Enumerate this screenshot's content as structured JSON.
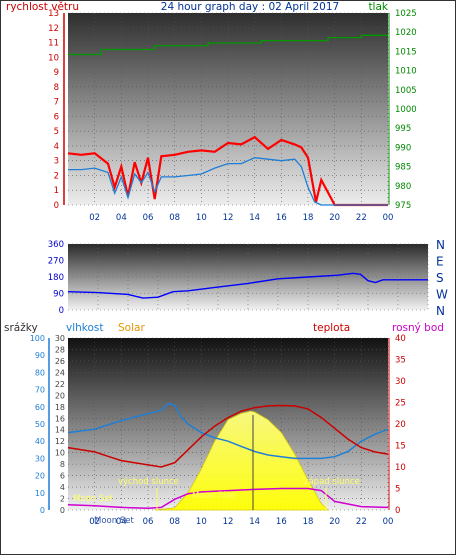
{
  "chart_data": [
    {
      "type": "line",
      "panel": "wind-pressure",
      "title": "24 hour graph day : 02 April 2017",
      "ylabel_left": "rychlost větru",
      "ylabel_right": "tlak",
      "x_tick_labels": [
        "02",
        "04",
        "06",
        "08",
        "10",
        "12",
        "14",
        "16",
        "18",
        "20",
        "22",
        "00"
      ],
      "y_left_ticks": [
        "0",
        "1",
        "2",
        "3",
        "4",
        "5",
        "6",
        "7",
        "8",
        "9",
        "10",
        "11",
        "12",
        "13"
      ],
      "y_right_ticks": [
        "975",
        "980",
        "985",
        "990",
        "995",
        "1000",
        "1005",
        "1010",
        "1015",
        "1020",
        "1025"
      ],
      "ylim_left": [
        0,
        13
      ],
      "ylim_right": [
        975,
        1025
      ],
      "xlim_hours": [
        0,
        24
      ],
      "series": [
        {
          "color": "#ff0000",
          "axis": "left",
          "x": [
            0,
            1,
            2,
            3,
            3.5,
            4,
            4.5,
            5,
            5.5,
            6,
            6.5,
            7,
            8,
            9,
            10,
            11,
            12,
            13,
            14,
            15,
            16,
            17,
            17.5,
            18,
            18.3,
            18.6,
            19,
            20,
            22,
            24
          ],
          "y": [
            3.5,
            3.4,
            3.5,
            2.8,
            1.2,
            2.6,
            0.6,
            2.9,
            1.5,
            3.2,
            0.4,
            3.3,
            3.4,
            3.6,
            3.7,
            3.6,
            4.2,
            4.1,
            4.6,
            3.8,
            4.4,
            4.1,
            3.9,
            3.2,
            1.7,
            0.2,
            1.7,
            0,
            0,
            0
          ]
        },
        {
          "color": "#1f7fd6",
          "axis": "left",
          "x": [
            0,
            1,
            2,
            3,
            3.5,
            4,
            4.5,
            5,
            5.5,
            6,
            6.5,
            7,
            8,
            9,
            10,
            11,
            12,
            13,
            14,
            15,
            16,
            17,
            17.5,
            18,
            18.5,
            19,
            20,
            22,
            24
          ],
          "y": [
            2.4,
            2.4,
            2.5,
            2.2,
            0.8,
            1.9,
            0.5,
            2.1,
            1.5,
            2.2,
            0.9,
            1.9,
            1.9,
            2.0,
            2.1,
            2.5,
            2.8,
            2.8,
            3.2,
            3.1,
            3.0,
            3.1,
            2.6,
            1.2,
            0.2,
            0,
            0,
            0,
            0
          ]
        },
        {
          "color": "#009900",
          "axis": "right",
          "x": [
            0,
            2.5,
            2.5,
            6.5,
            6.5,
            10.5,
            10.5,
            14.5,
            14.5,
            19.5,
            19.5,
            22,
            22,
            24
          ],
          "y": [
            1014.2,
            1014.2,
            1015.5,
            1015.5,
            1016.5,
            1016.5,
            1017.2,
            1017.2,
            1017.8,
            1017.8,
            1018.6,
            1018.6,
            1019.2,
            1019.2
          ]
        }
      ]
    },
    {
      "type": "scatter",
      "panel": "wind-direction",
      "x_tick_labels": [],
      "y_left_ticks": [
        "0",
        "90",
        "180",
        "270",
        "360"
      ],
      "direction_labels": [
        "N",
        "W",
        "S",
        "E",
        "N"
      ],
      "ylim": [
        0,
        360
      ],
      "series": [
        {
          "color": "#0000ff",
          "x": [
            0,
            2,
            4,
            5,
            6,
            7,
            8,
            10,
            12,
            14,
            16,
            18,
            19,
            19.5,
            20,
            20.5,
            21,
            24
          ],
          "y": [
            100,
            95,
            85,
            65,
            70,
            100,
            105,
            125,
            145,
            170,
            180,
            190,
            200,
            195,
            160,
            150,
            165,
            165
          ]
        }
      ]
    },
    {
      "type": "line",
      "panel": "temp-humidity-solar",
      "legend": [
        "srážky",
        "vlhkost",
        "Solar",
        "teplota",
        "rosný bod"
      ],
      "x_tick_labels": [
        "02",
        "04",
        "06",
        "08",
        "10",
        "12",
        "14",
        "16",
        "18",
        "20",
        "22",
        "00"
      ],
      "y_left1_ticks": [
        "0",
        "10",
        "20",
        "30",
        "40",
        "50",
        "60",
        "70",
        "80",
        "90",
        "100"
      ],
      "y_left2_ticks": [
        "0",
        "2",
        "4",
        "6",
        "8",
        "10",
        "12",
        "14",
        "16",
        "18",
        "20",
        "22",
        "24",
        "26",
        "28",
        "30"
      ],
      "y_right_ticks": [
        "0",
        "5",
        "10",
        "15",
        "20",
        "25",
        "30",
        "35",
        "40"
      ],
      "ylim_left1": [
        0,
        100
      ],
      "ylim_left2": [
        0,
        30
      ],
      "ylim_right": [
        0,
        40
      ],
      "annotations": [
        "východ slunce",
        "západ slunce",
        "Moon Set",
        "Moon Rise",
        "Moon Set"
      ],
      "series": [
        {
          "color": "#1f7fd6",
          "axis": "left1",
          "x": [
            0,
            2,
            4,
            5,
            6,
            7,
            7.5,
            8,
            8.5,
            9,
            10,
            11,
            12,
            13,
            14,
            15,
            16,
            17,
            18,
            19,
            20,
            21,
            22,
            23,
            24
          ],
          "y": [
            45,
            47,
            52,
            54,
            56,
            58,
            62,
            61,
            54,
            50,
            45,
            42,
            40,
            37,
            34,
            32,
            31,
            30,
            30,
            30,
            31,
            34,
            40,
            44,
            47
          ]
        },
        {
          "color": "#cc0000",
          "axis": "right",
          "x": [
            0,
            1,
            2,
            3,
            4,
            5,
            6,
            7,
            8,
            9,
            10,
            11,
            12,
            13,
            14,
            15,
            16,
            17,
            18,
            19,
            20,
            21,
            22,
            23,
            24
          ],
          "y": [
            14.5,
            14.0,
            13.5,
            12.5,
            11.5,
            11.0,
            10.5,
            10.0,
            11.0,
            14.0,
            17.0,
            19.5,
            21.5,
            23.0,
            23.8,
            24.2,
            24.3,
            24.2,
            23.5,
            21.5,
            19.0,
            16.5,
            14.5,
            13.5,
            13.0
          ]
        },
        {
          "color": "#d000d0",
          "axis": "right",
          "x": [
            0,
            2,
            4,
            6,
            7,
            8,
            9,
            10,
            12,
            14,
            16,
            18,
            19,
            20,
            22,
            24
          ],
          "y": [
            1.2,
            1.0,
            0.6,
            0.4,
            0.6,
            2.5,
            3.8,
            4.2,
            4.5,
            4.8,
            5.0,
            5.0,
            4.5,
            2.0,
            0.8,
            0.6
          ]
        },
        {
          "color": "#ffff00",
          "axis": "right",
          "x": [
            6.5,
            8,
            9,
            10,
            11,
            12,
            13,
            13.7,
            14,
            15,
            16,
            17,
            18,
            19,
            19.5
          ],
          "y": [
            0,
            0.5,
            4.0,
            9.5,
            16.0,
            21.0,
            22.5,
            23.0,
            22.8,
            21.0,
            18.0,
            13.0,
            7.0,
            1.5,
            0
          ]
        }
      ]
    }
  ]
}
